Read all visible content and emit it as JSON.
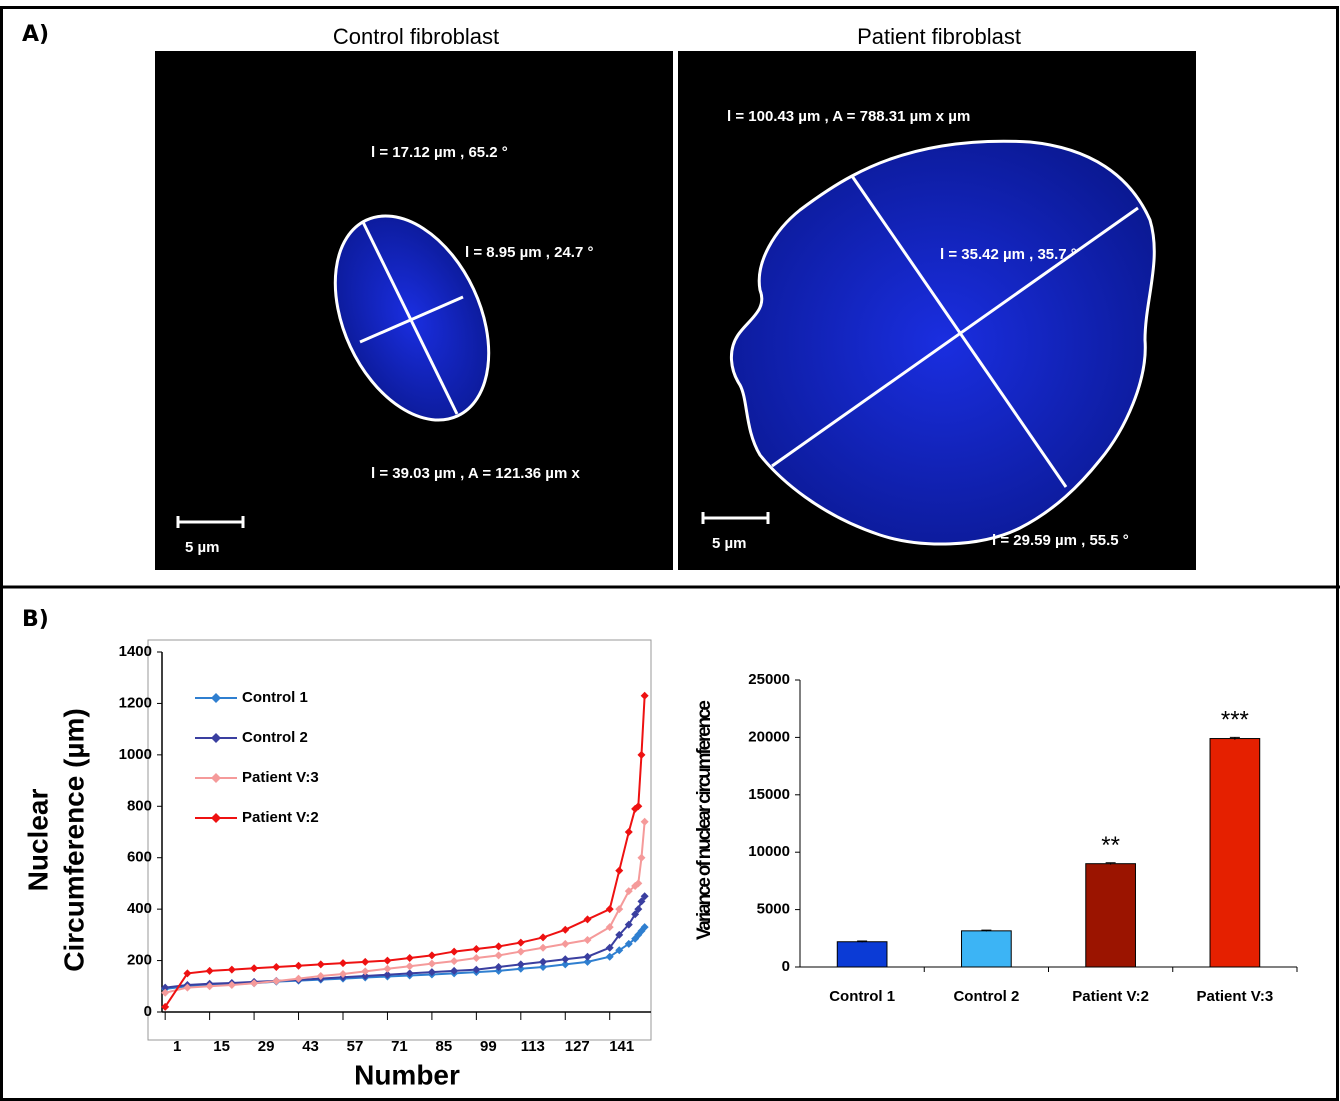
{
  "panel_a": {
    "label": "A)",
    "images": [
      {
        "title": "Control fibroblast",
        "measurements": [
          "l = 17.12 µm ,  65.2 °",
          "l = 8.95 µm ,  24.7 °",
          "l = 39.03 µm ,  A = 121.36 µm x"
        ],
        "scale_bar": "5 µm"
      },
      {
        "title": "Patient fibroblast",
        "measurements": [
          "l = 100.43 µm ,  A = 788.31 µm x µm",
          "l = 35.42 µm ,  35.7 °",
          "l = 29.59 µm ,  55.5 °"
        ],
        "scale_bar": "5 µm"
      }
    ]
  },
  "panel_b": {
    "label": "B)"
  },
  "chart_data": [
    {
      "type": "line",
      "xlabel": "Number",
      "ylabel": [
        "Nuclear",
        "Circumference (µm)"
      ],
      "x": [
        1,
        8,
        15,
        22,
        29,
        36,
        43,
        50,
        57,
        64,
        71,
        78,
        85,
        92,
        99,
        106,
        113,
        120,
        127,
        134,
        141,
        144,
        147,
        149,
        150,
        151,
        152
      ],
      "xlim": [
        0,
        154
      ],
      "xticks": [
        1,
        15,
        29,
        43,
        57,
        71,
        85,
        99,
        113,
        127,
        141
      ],
      "ylim": [
        0,
        1400
      ],
      "yticks": [
        0,
        200,
        400,
        600,
        800,
        1000,
        1200,
        1400
      ],
      "legend": "upper left",
      "series": [
        {
          "name": "Control 1",
          "color": "#2f7fd0",
          "values": [
            90,
            100,
            105,
            108,
            112,
            118,
            122,
            126,
            130,
            134,
            138,
            142,
            146,
            150,
            155,
            160,
            168,
            175,
            185,
            195,
            215,
            240,
            265,
            285,
            300,
            315,
            330
          ]
        },
        {
          "name": "Control 2",
          "color": "#3a3fa0",
          "values": [
            95,
            105,
            110,
            113,
            117,
            121,
            125,
            130,
            135,
            140,
            145,
            150,
            155,
            160,
            165,
            175,
            185,
            195,
            205,
            215,
            250,
            300,
            340,
            380,
            400,
            430,
            450
          ]
        },
        {
          "name": "Patient V:3",
          "color": "#f59a9a",
          "values": [
            75,
            95,
            100,
            105,
            112,
            120,
            130,
            140,
            148,
            158,
            168,
            178,
            188,
            198,
            210,
            220,
            235,
            250,
            265,
            280,
            330,
            400,
            470,
            490,
            500,
            600,
            740
          ]
        },
        {
          "name": "Patient V:2",
          "color": "#ee1111",
          "values": [
            20,
            150,
            160,
            165,
            170,
            175,
            180,
            185,
            190,
            195,
            200,
            210,
            220,
            235,
            245,
            255,
            270,
            290,
            320,
            360,
            400,
            550,
            700,
            790,
            800,
            1000,
            1230
          ]
        }
      ]
    },
    {
      "type": "bar",
      "ylabel": "Variance of nuclear circumference",
      "categories": [
        "Control 1",
        "Control 2",
        "Patient V:2",
        "Patient V:3"
      ],
      "values": [
        2200,
        3150,
        9000,
        19900
      ],
      "errors": [
        60,
        60,
        80,
        100
      ],
      "colors": [
        "#0b3bd6",
        "#3cb4f5",
        "#9b1400",
        "#e52000"
      ],
      "significance": [
        null,
        null,
        "**",
        "***"
      ],
      "ylim": [
        0,
        25000
      ],
      "yticks": [
        0,
        5000,
        10000,
        15000,
        20000,
        25000
      ]
    }
  ]
}
